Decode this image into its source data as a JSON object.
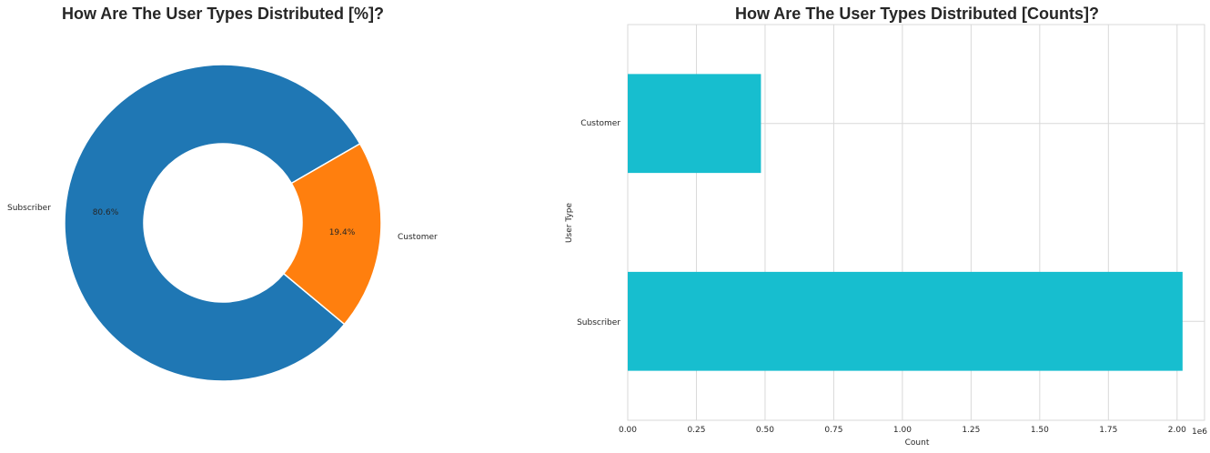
{
  "chart_data": [
    {
      "type": "pie",
      "title": "How Are The User Types Distributed [%]?",
      "donut": true,
      "slices": [
        {
          "label": "Subscriber",
          "pct_label": "80.6%",
          "value": 80.6,
          "color": "#1f77b4"
        },
        {
          "label": "Customer",
          "pct_label": "19.4%",
          "value": 19.4,
          "color": "#ff7f0e"
        }
      ]
    },
    {
      "type": "bar",
      "orientation": "horizontal",
      "title": "How Are The User Types Distributed [Counts]?",
      "xlabel": "Count",
      "ylabel": "User Type",
      "offset_label": "1e6",
      "categories": [
        "Subscriber",
        "Customer"
      ],
      "values": [
        2020000,
        485000
      ],
      "xlim": [
        0,
        2100000
      ],
      "xticks": [
        0,
        250000,
        500000,
        750000,
        1000000,
        1250000,
        1500000,
        1750000,
        2000000
      ],
      "xtick_labels": [
        "0.00",
        "0.25",
        "0.50",
        "0.75",
        "1.00",
        "1.25",
        "1.50",
        "1.75",
        "2.00"
      ],
      "color": "#17becf",
      "grid": true
    }
  ]
}
